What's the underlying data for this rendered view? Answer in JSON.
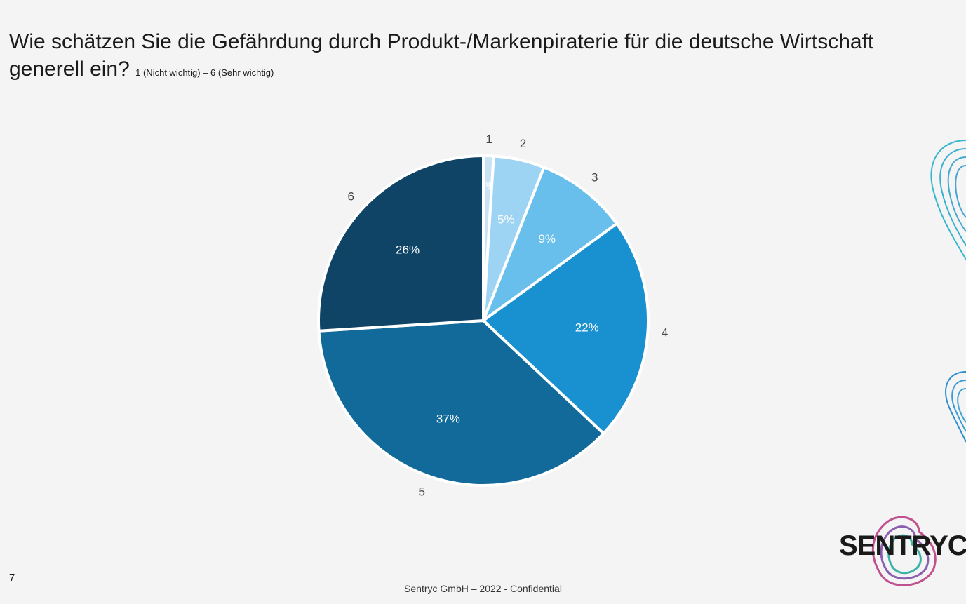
{
  "title": {
    "main": "Wie schätzen Sie die Gefährdung durch Produkt-/Markenpiraterie für die deutsche Wirtschaft generell ein?",
    "scale": "1 (Nicht wichtig) – 6 (Sehr wichtig)"
  },
  "page_number": "7",
  "footer": "Sentryc GmbH – 2022 - Confidential",
  "logo": "SENTRYC",
  "chart_data": {
    "type": "pie",
    "categories": [
      "1",
      "2",
      "3",
      "4",
      "5",
      "6"
    ],
    "values": [
      1,
      5,
      9,
      22,
      37,
      26
    ],
    "labels": [
      "1%",
      "5%",
      "9%",
      "22%",
      "37%",
      "26%"
    ],
    "colors": [
      "#c9e3f4",
      "#9dd3f3",
      "#69bfec",
      "#1990cf",
      "#126a9a",
      "#0f4466"
    ],
    "start": "top",
    "direction": "clockwise"
  }
}
